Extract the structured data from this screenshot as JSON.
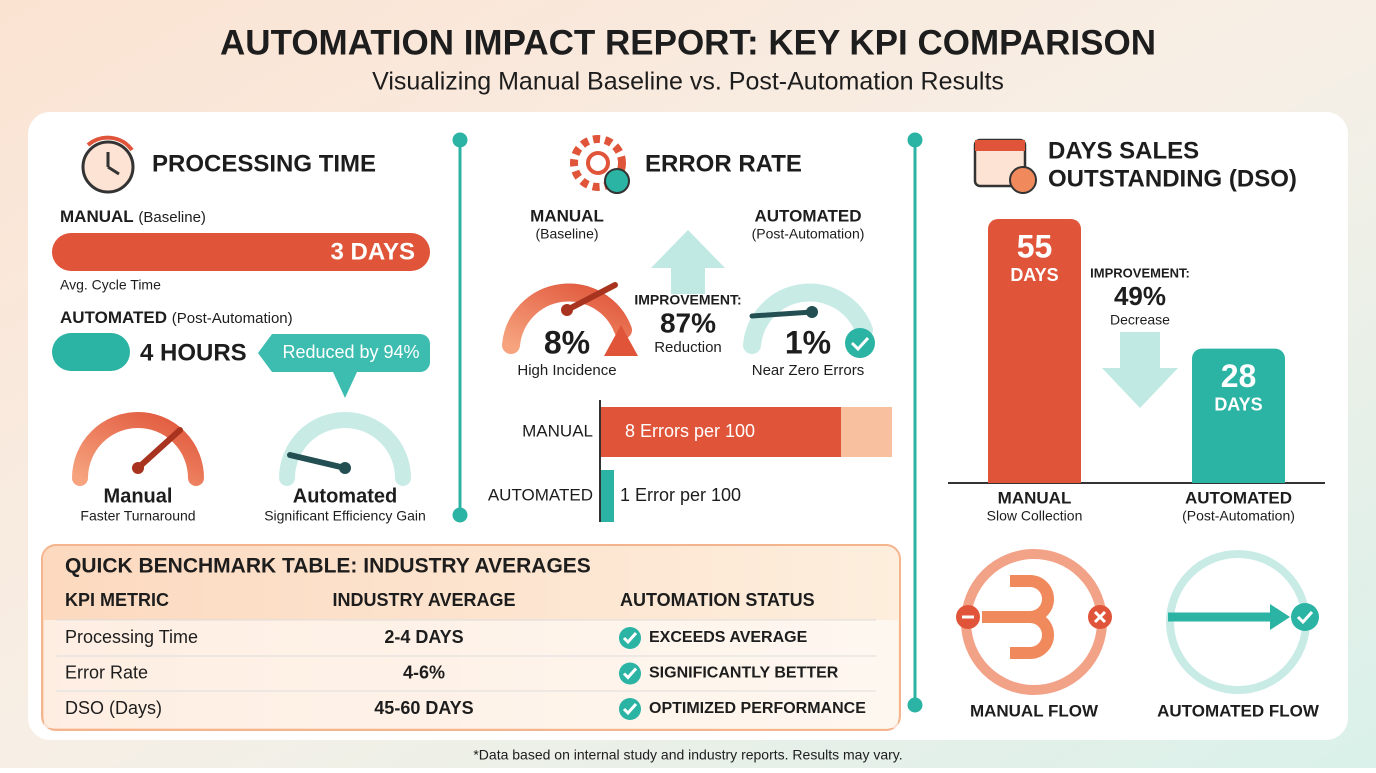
{
  "header": {
    "title": "AUTOMATION IMPACT REPORT: KEY KPI COMPARISON",
    "subtitle": "Visualizing Manual Baseline vs. Post-Automation Results"
  },
  "processing_time": {
    "title": "PROCESSING TIME",
    "manual_label": "MANUAL",
    "manual_note": "(Baseline)",
    "manual_value": "3 DAYS",
    "manual_caption": "Avg. Cycle Time",
    "automated_label": "AUTOMATED",
    "automated_note": "(Post-Automation)",
    "automated_value": "4 HOURS",
    "callout": "Reduced by 94%",
    "gauge_manual": "Manual",
    "gauge_manual_caption": "Faster Turnaround",
    "gauge_automated": "Automated",
    "gauge_automated_caption": "Significant Efficiency Gain"
  },
  "error_rate": {
    "title": "ERROR RATE",
    "manual_label": "MANUAL",
    "manual_note": "(Baseline)",
    "manual_value": "8%",
    "manual_caption": "High Incidence",
    "automated_label": "AUTOMATED",
    "automated_note": "(Post-Automation)",
    "automated_value": "1%",
    "automated_caption": "Near Zero Errors",
    "improvement_label": "IMPROVEMENT:",
    "improvement_value": "87%",
    "improvement_caption": "Reduction",
    "bar_manual_label": "MANUAL",
    "bar_manual_text": "8 Errors per 100",
    "bar_automated_label": "AUTOMATED",
    "bar_automated_text": "1 Error per 100"
  },
  "dso": {
    "title_line1": "DAYS SALES",
    "title_line2": "OUTSTANDING (DSO)",
    "manual": {
      "value": 55,
      "unit": "DAYS",
      "label": "MANUAL",
      "caption": "Slow Collection"
    },
    "automated": {
      "value": 28,
      "unit": "DAYS",
      "label": "AUTOMATED",
      "caption": "(Post-Automation)"
    },
    "improvement_label": "IMPROVEMENT:",
    "improvement_value": "49%",
    "improvement_caption": "Decrease",
    "flow_manual": "MANUAL FLOW",
    "flow_automated": "AUTOMATED FLOW"
  },
  "table": {
    "title": "QUICK BENCHMARK TABLE: INDUSTRY AVERAGES",
    "headers": [
      "KPI METRIC",
      "INDUSTRY AVERAGE",
      "AUTOMATION STATUS"
    ],
    "rows": [
      [
        "Processing Time",
        "2-4 DAYS",
        "EXCEEDS AVERAGE"
      ],
      [
        "Error Rate",
        "4-6%",
        "SIGNIFICANTLY BETTER"
      ],
      [
        "DSO (Days)",
        "45-60 DAYS",
        "OPTIMIZED PERFORMANCE"
      ]
    ]
  },
  "footnote": "*Data based on internal study and industry reports. Results may vary."
}
